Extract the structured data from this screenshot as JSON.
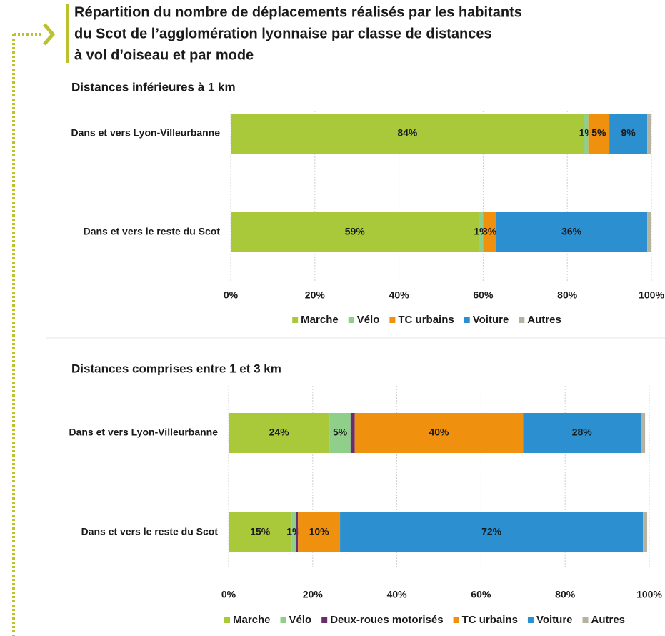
{
  "header": {
    "title": [
      "Répartition du nombre de déplacements réalisés par les habitants",
      "du Scot de l’agglomération lyonnaise par classe de distances",
      "à vol d’oiseau et par mode"
    ]
  },
  "chart_data": [
    {
      "type": "stacked-barh",
      "title": "Distances inférieures à 1 km",
      "categories": [
        "Dans et vers Lyon-Villeurbanne",
        "Dans et vers le reste du Scot"
      ],
      "series": [
        {
          "name": "Marche",
          "color": "#a9c93b",
          "values": [
            84,
            59
          ],
          "value_labels": [
            "84%",
            "59%"
          ]
        },
        {
          "name": "Vélo",
          "color": "#8fcf8a",
          "values": [
            1,
            1
          ],
          "value_labels": [
            "1%",
            "1%"
          ]
        },
        {
          "name": "TC urbains",
          "color": "#f0900f",
          "values": [
            5,
            3
          ],
          "value_labels": [
            "5%",
            "3%"
          ]
        },
        {
          "name": "Voiture",
          "color": "#2b8fd0",
          "values": [
            9,
            36
          ],
          "value_labels": [
            "9%",
            "36%"
          ]
        },
        {
          "name": "Autres",
          "color": "#b5b3a0",
          "values": [
            1,
            1
          ],
          "value_labels": [
            null,
            null
          ]
        }
      ],
      "xlim": [
        0,
        100
      ],
      "xticks": [
        {
          "value": 0,
          "label": "0%"
        },
        {
          "value": 20,
          "label": "20%"
        },
        {
          "value": 40,
          "label": "40%"
        },
        {
          "value": 60,
          "label": "60%"
        },
        {
          "value": 80,
          "label": "80%"
        },
        {
          "value": 100,
          "label": "100%"
        }
      ],
      "grid": true
    },
    {
      "type": "stacked-barh",
      "title": "Distances comprises entre 1 et 3 km",
      "categories": [
        "Dans et vers Lyon-Villeurbanne",
        "Dans et vers le reste du Scot"
      ],
      "series": [
        {
          "name": "Marche",
          "color": "#a9c93b",
          "values": [
            24,
            15
          ],
          "value_labels": [
            "24%",
            "15%"
          ]
        },
        {
          "name": "Vélo",
          "color": "#8fcf8a",
          "values": [
            5,
            1
          ],
          "value_labels": [
            "5%",
            "1%"
          ]
        },
        {
          "name": "Deux-roues motorisés",
          "color": "#6b2d6b",
          "values": [
            1,
            0.5
          ],
          "value_labels": [
            null,
            null
          ]
        },
        {
          "name": "TC urbains",
          "color": "#f0900f",
          "values": [
            40,
            10
          ],
          "value_labels": [
            "40%",
            "10%"
          ]
        },
        {
          "name": "Voiture",
          "color": "#2b8fd0",
          "values": [
            28,
            72
          ],
          "value_labels": [
            "28%",
            "72%"
          ]
        },
        {
          "name": "Autres",
          "color": "#b5b3a0",
          "values": [
            1,
            1
          ],
          "value_labels": [
            null,
            null
          ]
        }
      ],
      "xlim": [
        0,
        100
      ],
      "xticks": [
        {
          "value": 0,
          "label": "0%"
        },
        {
          "value": 20,
          "label": "20%"
        },
        {
          "value": 40,
          "label": "40%"
        },
        {
          "value": 60,
          "label": "60%"
        },
        {
          "value": 80,
          "label": "80%"
        },
        {
          "value": 100,
          "label": "100%"
        }
      ],
      "grid": true
    }
  ]
}
